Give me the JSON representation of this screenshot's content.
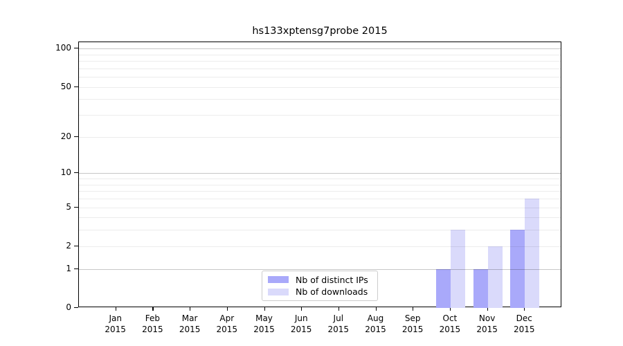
{
  "title": "hs133xptensg7probe 2015",
  "chart_data": {
    "type": "bar",
    "title": "hs133xptensg7probe 2015",
    "categories": [
      "Jan",
      "Feb",
      "Mar",
      "Apr",
      "May",
      "Jun",
      "Jul",
      "Aug",
      "Sep",
      "Oct",
      "Nov",
      "Dec"
    ],
    "x_tick_second_line": "2015",
    "series": [
      {
        "name": "Nb of distinct IPs",
        "color": "#a9a9fa",
        "values": [
          0,
          0,
          0,
          0,
          0,
          0,
          0,
          0,
          0,
          1,
          1,
          3
        ]
      },
      {
        "name": "Nb of downloads",
        "color": "#dadafb",
        "values": [
          0,
          0,
          0,
          0,
          0,
          0,
          0,
          0,
          0,
          3,
          2,
          6
        ]
      }
    ],
    "yscale": "log1p",
    "ylim": [
      0,
      112
    ],
    "y_ticks": [
      0,
      1,
      2,
      5,
      10,
      20,
      50,
      100
    ],
    "grid_major": [
      1,
      10,
      100
    ],
    "grid_minor": [
      2,
      3,
      4,
      5,
      6,
      7,
      8,
      9,
      20,
      30,
      40,
      50,
      60,
      70,
      80,
      90
    ],
    "grid": "on",
    "legend_position": "lower center-left inside axes",
    "background": "#ffffff",
    "frame_color": "#000000"
  }
}
